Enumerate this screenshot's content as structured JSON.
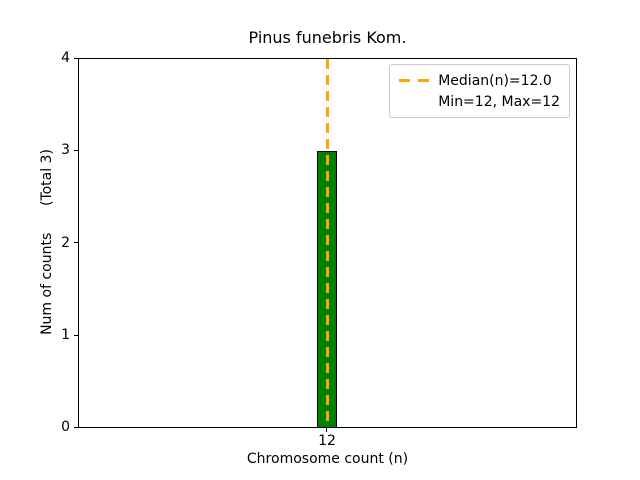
{
  "chart_data": {
    "type": "bar",
    "title": "Pinus funebris Kom.",
    "xlabel": "Chromosome count (n)",
    "ylabel": "Num of counts      (Total 3)",
    "categories": [
      "12"
    ],
    "values": [
      3
    ],
    "total_counts": 3,
    "ylim": [
      0,
      4
    ],
    "yticks": [
      "0",
      "1",
      "2",
      "3",
      "4"
    ],
    "grid": false,
    "bar_color": "#008000",
    "bar_edge_color": "#000000",
    "median_line": {
      "x": 12.0,
      "color": "#FFA500",
      "style": "dashed"
    },
    "legend": {
      "position": "upper right",
      "entries": [
        {
          "label": "Median(n)=12.0",
          "marker": "orange-dashed-line"
        },
        {
          "label": "Min=12, Max=12",
          "marker": "none"
        }
      ]
    }
  }
}
